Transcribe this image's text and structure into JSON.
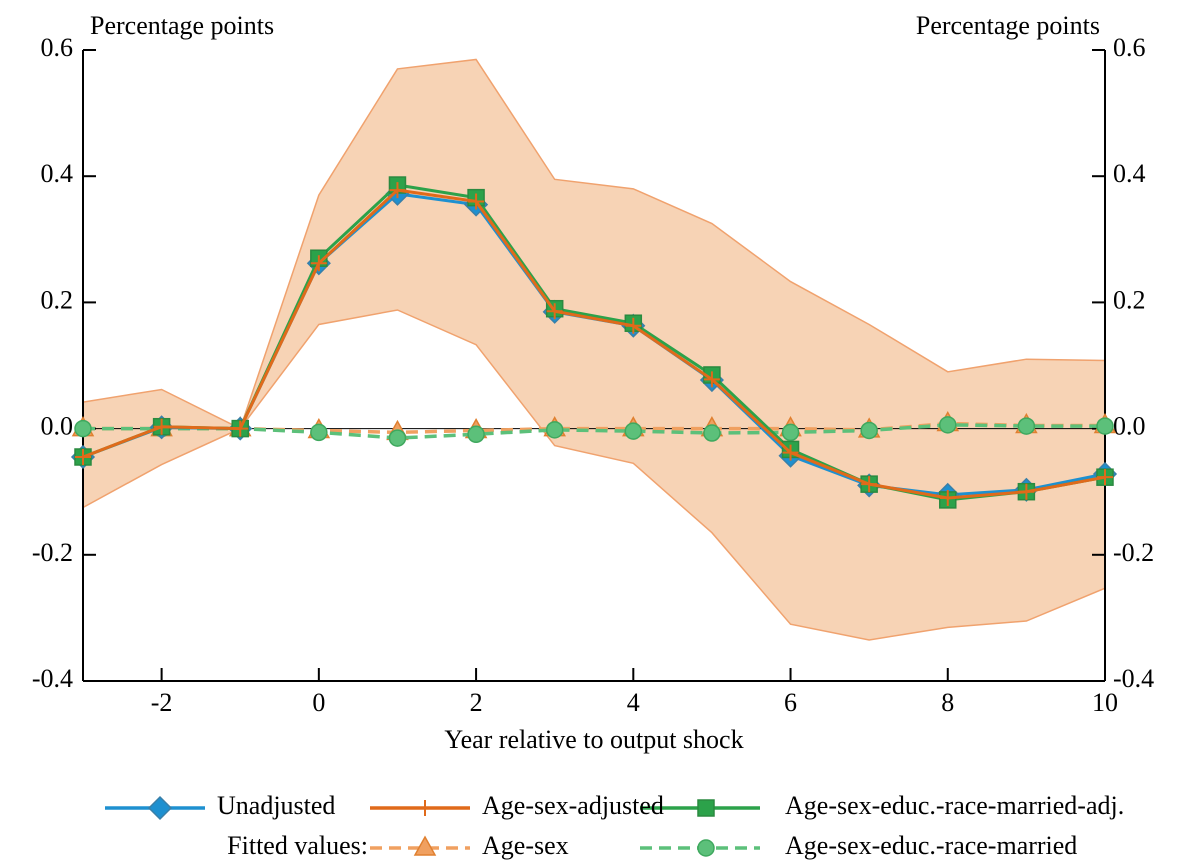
{
  "chart_data": {
    "type": "line",
    "ylabel": "Percentage points",
    "y2label": "Percentage points",
    "xlabel": "Year relative to output shock",
    "x": [
      -3,
      -2,
      -1,
      0,
      1,
      2,
      3,
      4,
      5,
      6,
      7,
      8,
      9,
      10
    ],
    "xlim": [
      -3,
      10
    ],
    "xticks": [
      -2,
      0,
      2,
      4,
      6,
      8,
      10
    ],
    "ylim": [
      -0.4,
      0.6
    ],
    "yticks": [
      {
        "value": -0.4,
        "label": "-0.4"
      },
      -0.2,
      {
        "value": 0,
        "label": "0.0"
      },
      0.2,
      0.4,
      0.6
    ],
    "y2lim": [
      -0.4,
      0.6
    ],
    "y2ticks": [
      {
        "value": -0.4,
        "label": "-0.4"
      },
      -0.2,
      {
        "value": 0,
        "label": "0.0"
      },
      0.2,
      0.4,
      0.6
    ],
    "band": {
      "color": "#f7d3b5",
      "edge": "#f0a26e",
      "upper": [
        0.042,
        0.062,
        0.0,
        0.37,
        0.57,
        0.585,
        0.395,
        0.38,
        0.325,
        0.233,
        0.165,
        0.09,
        0.11,
        0.108
      ],
      "lower": [
        -0.125,
        -0.057,
        0.0,
        0.165,
        0.188,
        0.133,
        -0.027,
        -0.055,
        -0.165,
        -0.31,
        -0.335,
        -0.315,
        -0.305,
        -0.253
      ]
    },
    "legend_prefix": "Fitted values:",
    "series": [
      {
        "name": "Age-sex",
        "color": "#f0a060",
        "marker": "triangle",
        "dashed": true,
        "values": [
          0,
          0,
          0,
          -0.003,
          -0.006,
          -0.003,
          0,
          0,
          0,
          0,
          -0.002,
          0.008,
          0.005,
          0.005
        ]
      },
      {
        "name": "Age-sex-educ.-race-married",
        "color": "#5cc07a",
        "marker": "circle",
        "dashed": true,
        "values": [
          0,
          0,
          0,
          -0.006,
          -0.015,
          -0.009,
          -0.002,
          -0.004,
          -0.007,
          -0.006,
          -0.003,
          0.006,
          0.004,
          0.004
        ]
      },
      {
        "name": "Unadjusted",
        "color": "#1e90d0",
        "marker": "diamond",
        "dashed": false,
        "values": [
          -0.045,
          0.002,
          0.0,
          0.262,
          0.372,
          0.355,
          0.185,
          0.163,
          0.077,
          -0.043,
          -0.09,
          -0.105,
          -0.097,
          -0.072
        ]
      },
      {
        "name": "Age-sex-educ.-race-married-adj.",
        "color": "#2ca24a",
        "marker": "square",
        "dashed": false,
        "values": [
          -0.045,
          0.003,
          0.0,
          0.27,
          0.386,
          0.366,
          0.19,
          0.167,
          0.085,
          -0.033,
          -0.088,
          -0.113,
          -0.1,
          -0.077
        ]
      },
      {
        "name": "Age-sex-adjusted",
        "color": "#e06a1a",
        "marker": "plus",
        "dashed": false,
        "values": [
          -0.045,
          0.003,
          0.0,
          0.262,
          0.378,
          0.36,
          0.186,
          0.163,
          0.078,
          -0.038,
          -0.088,
          -0.11,
          -0.1,
          -0.077
        ]
      }
    ]
  }
}
